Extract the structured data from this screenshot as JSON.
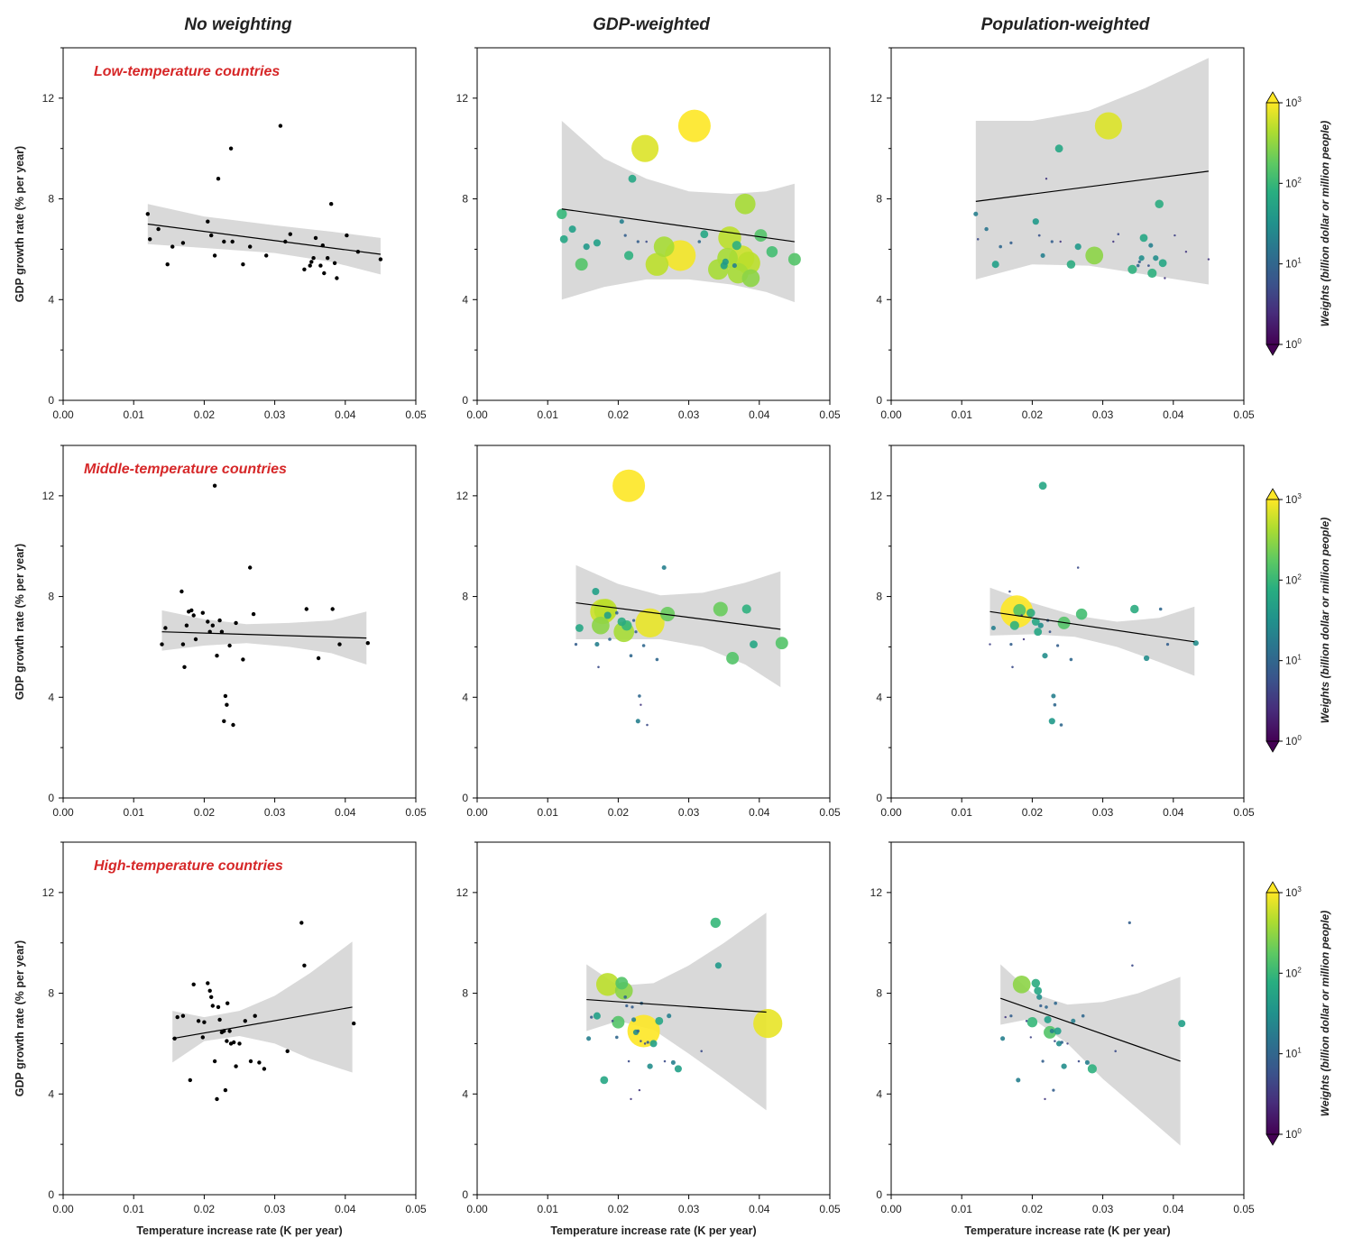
{
  "column_titles": [
    "No weighting",
    "GDP-weighted",
    "Population-weighted"
  ],
  "row_labels": [
    "Low-temperature countries",
    "Middle-temperature countries",
    "High-temperature countries"
  ],
  "colors": {
    "row_label": "#d62728",
    "band": "#d9d9d9",
    "points_unweighted": "#000000"
  },
  "colorbar": {
    "label": "Weights (billion dollar or million people)",
    "ticks": [
      "10",
      "10",
      "10",
      "10"
    ],
    "tick_exponents": [
      "0",
      "1",
      "2",
      "3"
    ],
    "colormap": "viridis"
  },
  "chart_data": {
    "type": "scatter",
    "layout": "3x3 grid",
    "xlabel": "Temperature increase rate (K per year)",
    "ylabel": "GDP growth rate (% per year)",
    "xlim": [
      0.0,
      0.05
    ],
    "ylim": [
      0,
      14
    ],
    "x_ticks": [
      "0.00",
      "0.01",
      "0.02",
      "0.03",
      "0.04",
      "0.05"
    ],
    "y_ticks": [
      "0",
      "4",
      "8",
      "12"
    ],
    "panels": [
      {
        "group": "Low-temperature countries",
        "points": [
          {
            "x": 0.012,
            "y": 7.4,
            "gdp": 100,
            "pop": 20
          },
          {
            "x": 0.0123,
            "y": 6.4,
            "gdp": 60,
            "pop": 5
          },
          {
            "x": 0.0135,
            "y": 6.8,
            "gdp": 50,
            "pop": 15
          },
          {
            "x": 0.0148,
            "y": 5.4,
            "gdp": 150,
            "pop": 50
          },
          {
            "x": 0.0155,
            "y": 6.1,
            "gdp": 40,
            "pop": 10
          },
          {
            "x": 0.017,
            "y": 6.25,
            "gdp": 50,
            "pop": 8
          },
          {
            "x": 0.0205,
            "y": 7.1,
            "gdp": 20,
            "pop": 40
          },
          {
            "x": 0.021,
            "y": 6.55,
            "gdp": 8,
            "pop": 6
          },
          {
            "x": 0.0215,
            "y": 5.75,
            "gdp": 80,
            "pop": 20
          },
          {
            "x": 0.022,
            "y": 8.8,
            "gdp": 60,
            "pop": 3
          },
          {
            "x": 0.0228,
            "y": 6.3,
            "gdp": 8,
            "pop": 8
          },
          {
            "x": 0.0238,
            "y": 10.0,
            "gdp": 700,
            "pop": 60
          },
          {
            "x": 0.024,
            "y": 6.3,
            "gdp": 5,
            "pop": 3
          },
          {
            "x": 0.0255,
            "y": 5.4,
            "gdp": 500,
            "pop": 70
          },
          {
            "x": 0.0265,
            "y": 6.1,
            "gdp": 400,
            "pop": 40
          },
          {
            "x": 0.0288,
            "y": 5.75,
            "gdp": 900,
            "pop": 300
          },
          {
            "x": 0.0308,
            "y": 10.9,
            "gdp": 1000,
            "pop": 700
          },
          {
            "x": 0.0315,
            "y": 6.3,
            "gdp": 10,
            "pop": 3
          },
          {
            "x": 0.0322,
            "y": 6.6,
            "gdp": 60,
            "pop": 5
          },
          {
            "x": 0.0342,
            "y": 5.2,
            "gdp": 400,
            "pop": 80
          },
          {
            "x": 0.035,
            "y": 5.35,
            "gdp": 50,
            "pop": 10
          },
          {
            "x": 0.0352,
            "y": 5.5,
            "gdp": 40,
            "pop": 8
          },
          {
            "x": 0.0355,
            "y": 5.65,
            "gdp": 400,
            "pop": 30
          },
          {
            "x": 0.0358,
            "y": 6.45,
            "gdp": 500,
            "pop": 60
          },
          {
            "x": 0.0365,
            "y": 5.35,
            "gdp": 20,
            "pop": 6
          },
          {
            "x": 0.0368,
            "y": 6.15,
            "gdp": 80,
            "pop": 20
          },
          {
            "x": 0.037,
            "y": 5.05,
            "gdp": 400,
            "pop": 80
          },
          {
            "x": 0.0375,
            "y": 5.65,
            "gdp": 600,
            "pop": 30
          },
          {
            "x": 0.038,
            "y": 7.8,
            "gdp": 400,
            "pop": 70
          },
          {
            "x": 0.0385,
            "y": 5.45,
            "gdp": 500,
            "pop": 60
          },
          {
            "x": 0.0388,
            "y": 4.85,
            "gdp": 300,
            "pop": 3
          },
          {
            "x": 0.0402,
            "y": 6.55,
            "gdp": 150,
            "pop": 4
          },
          {
            "x": 0.0418,
            "y": 5.9,
            "gdp": 120,
            "pop": 3
          },
          {
            "x": 0.045,
            "y": 5.6,
            "gdp": 150,
            "pop": 3
          }
        ],
        "regression": {
          "x": [
            0.012,
            0.045
          ],
          "unweighted": [
            7.0,
            5.8
          ],
          "gdp": [
            7.6,
            6.3
          ],
          "pop": [
            7.9,
            9.1
          ]
        },
        "band": {
          "unweighted": {
            "x": [
              0.012,
              0.02,
              0.03,
              0.038,
              0.045
            ],
            "lower": [
              6.2,
              6.05,
              5.85,
              5.5,
              5.0
            ],
            "upper": [
              7.8,
              7.3,
              6.95,
              6.7,
              6.45
            ]
          },
          "gdp": {
            "x": [
              0.012,
              0.018,
              0.024,
              0.03,
              0.036,
              0.041,
              0.045
            ],
            "lower": [
              4.0,
              4.5,
              4.8,
              4.8,
              4.6,
              4.3,
              3.9
            ],
            "upper": [
              11.1,
              9.6,
              8.8,
              8.3,
              8.2,
              8.3,
              8.6
            ]
          },
          "pop": {
            "x": [
              0.012,
              0.02,
              0.028,
              0.036,
              0.045
            ],
            "lower": [
              4.8,
              5.4,
              5.35,
              5.0,
              4.6
            ],
            "upper": [
              11.1,
              11.1,
              11.5,
              12.4,
              13.6
            ]
          }
        }
      },
      {
        "group": "Middle-temperature countries",
        "points": [
          {
            "x": 0.014,
            "y": 6.1,
            "gdp": 8,
            "pop": 4
          },
          {
            "x": 0.0145,
            "y": 6.75,
            "gdp": 60,
            "pop": 20
          },
          {
            "x": 0.0168,
            "y": 8.2,
            "gdp": 50,
            "pop": 5
          },
          {
            "x": 0.017,
            "y": 6.1,
            "gdp": 20,
            "pop": 8
          },
          {
            "x": 0.0172,
            "y": 5.2,
            "gdp": 5,
            "pop": 5
          },
          {
            "x": 0.0175,
            "y": 6.85,
            "gdp": 300,
            "pop": 80
          },
          {
            "x": 0.0178,
            "y": 7.4,
            "gdp": 600,
            "pop": 1000
          },
          {
            "x": 0.0182,
            "y": 7.45,
            "gdp": 500,
            "pop": 150
          },
          {
            "x": 0.0185,
            "y": 7.25,
            "gdp": 50,
            "pop": 3
          },
          {
            "x": 0.0188,
            "y": 6.3,
            "gdp": 10,
            "pop": 3
          },
          {
            "x": 0.0198,
            "y": 7.35,
            "gdp": 10,
            "pop": 70
          },
          {
            "x": 0.0205,
            "y": 7.0,
            "gdp": 70,
            "pop": 60
          },
          {
            "x": 0.0208,
            "y": 6.6,
            "gdp": 400,
            "pop": 60
          },
          {
            "x": 0.0212,
            "y": 6.85,
            "gdp": 100,
            "pop": 30
          },
          {
            "x": 0.0215,
            "y": 12.4,
            "gdp": 1000,
            "pop": 60
          },
          {
            "x": 0.0218,
            "y": 5.65,
            "gdp": 10,
            "pop": 30
          },
          {
            "x": 0.0222,
            "y": 7.05,
            "gdp": 8,
            "pop": 8
          },
          {
            "x": 0.0225,
            "y": 6.6,
            "gdp": 8,
            "pop": 6
          },
          {
            "x": 0.0228,
            "y": 3.05,
            "gdp": 20,
            "pop": 40
          },
          {
            "x": 0.023,
            "y": 4.05,
            "gdp": 10,
            "pop": 20
          },
          {
            "x": 0.0232,
            "y": 3.7,
            "gdp": 3,
            "pop": 10
          },
          {
            "x": 0.0236,
            "y": 6.05,
            "gdp": 10,
            "pop": 8
          },
          {
            "x": 0.0241,
            "y": 2.9,
            "gdp": 5,
            "pop": 10
          },
          {
            "x": 0.0245,
            "y": 6.95,
            "gdp": 800,
            "pop": 150
          },
          {
            "x": 0.0255,
            "y": 5.5,
            "gdp": 10,
            "pop": 10
          },
          {
            "x": 0.0265,
            "y": 9.15,
            "gdp": 20,
            "pop": 5
          },
          {
            "x": 0.027,
            "y": 7.3,
            "gdp": 200,
            "pop": 120
          },
          {
            "x": 0.0345,
            "y": 7.5,
            "gdp": 200,
            "pop": 70
          },
          {
            "x": 0.0362,
            "y": 5.55,
            "gdp": 150,
            "pop": 30
          },
          {
            "x": 0.0382,
            "y": 7.5,
            "gdp": 80,
            "pop": 10
          },
          {
            "x": 0.0392,
            "y": 6.1,
            "gdp": 60,
            "pop": 8
          },
          {
            "x": 0.0432,
            "y": 6.15,
            "gdp": 150,
            "pop": 30
          }
        ],
        "regression": {
          "x": [
            0.014,
            0.043
          ],
          "unweighted": [
            6.6,
            6.35
          ],
          "gdp": [
            7.75,
            6.7
          ],
          "pop": [
            7.4,
            6.2
          ]
        },
        "band": {
          "unweighted": {
            "x": [
              0.014,
              0.02,
              0.026,
              0.032,
              0.038,
              0.043
            ],
            "lower": [
              5.85,
              6.05,
              6.15,
              6.0,
              5.75,
              5.3
            ],
            "upper": [
              7.45,
              7.1,
              6.9,
              6.95,
              7.05,
              7.4
            ]
          },
          "gdp": {
            "x": [
              0.014,
              0.02,
              0.026,
              0.032,
              0.038,
              0.043
            ],
            "lower": [
              6.3,
              6.3,
              6.3,
              6.0,
              5.3,
              4.4
            ],
            "upper": [
              9.25,
              8.5,
              8.05,
              8.15,
              8.55,
              9.0
            ]
          },
          "pop": {
            "x": [
              0.014,
              0.02,
              0.026,
              0.032,
              0.038,
              0.043
            ],
            "lower": [
              6.45,
              6.5,
              6.4,
              6.0,
              5.4,
              4.85
            ],
            "upper": [
              8.35,
              7.75,
              7.25,
              7.0,
              7.15,
              7.6
            ]
          }
        }
      },
      {
        "group": "High-temperature countries",
        "points": [
          {
            "x": 0.0158,
            "y": 6.2,
            "gdp": 20,
            "pop": 20
          },
          {
            "x": 0.0162,
            "y": 7.05,
            "gdp": 8,
            "pop": 3
          },
          {
            "x": 0.017,
            "y": 7.1,
            "gdp": 50,
            "pop": 8
          },
          {
            "x": 0.018,
            "y": 4.55,
            "gdp": 60,
            "pop": 20
          },
          {
            "x": 0.0185,
            "y": 8.35,
            "gdp": 500,
            "pop": 300
          },
          {
            "x": 0.0192,
            "y": 6.9,
            "gdp": 5,
            "pop": 5
          },
          {
            "x": 0.0198,
            "y": 6.25,
            "gdp": 10,
            "pop": 4
          },
          {
            "x": 0.02,
            "y": 6.85,
            "gdp": 150,
            "pop": 100
          },
          {
            "x": 0.0205,
            "y": 8.4,
            "gdp": 150,
            "pop": 70
          },
          {
            "x": 0.0208,
            "y": 8.1,
            "gdp": 300,
            "pop": 60
          },
          {
            "x": 0.021,
            "y": 7.85,
            "gdp": 10,
            "pop": 30
          },
          {
            "x": 0.0212,
            "y": 7.5,
            "gdp": 8,
            "pop": 8
          },
          {
            "x": 0.0215,
            "y": 5.3,
            "gdp": 5,
            "pop": 8
          },
          {
            "x": 0.0218,
            "y": 3.8,
            "gdp": 3,
            "pop": 3
          },
          {
            "x": 0.022,
            "y": 7.45,
            "gdp": 8,
            "pop": 10
          },
          {
            "x": 0.0222,
            "y": 6.95,
            "gdp": 20,
            "pop": 50
          },
          {
            "x": 0.0225,
            "y": 6.45,
            "gdp": 30,
            "pop": 150
          },
          {
            "x": 0.0228,
            "y": 6.5,
            "gdp": 10,
            "pop": 20
          },
          {
            "x": 0.023,
            "y": 4.15,
            "gdp": 3,
            "pop": 8
          },
          {
            "x": 0.0232,
            "y": 6.1,
            "gdp": 5,
            "pop": 5
          },
          {
            "x": 0.0233,
            "y": 7.6,
            "gdp": 10,
            "pop": 10
          },
          {
            "x": 0.0236,
            "y": 6.5,
            "gdp": 1000,
            "pop": 50
          },
          {
            "x": 0.0238,
            "y": 6.0,
            "gdp": 5,
            "pop": 30
          },
          {
            "x": 0.0242,
            "y": 6.05,
            "gdp": 8,
            "pop": 10
          },
          {
            "x": 0.0245,
            "y": 5.1,
            "gdp": 30,
            "pop": 30
          },
          {
            "x": 0.025,
            "y": 6.0,
            "gdp": 50,
            "pop": 4
          },
          {
            "x": 0.0258,
            "y": 6.9,
            "gdp": 60,
            "pop": 20
          },
          {
            "x": 0.0266,
            "y": 5.3,
            "gdp": 5,
            "pop": 5
          },
          {
            "x": 0.0272,
            "y": 7.1,
            "gdp": 20,
            "pop": 10
          },
          {
            "x": 0.0278,
            "y": 5.25,
            "gdp": 20,
            "pop": 20
          },
          {
            "x": 0.0285,
            "y": 5.0,
            "gdp": 50,
            "pop": 80
          },
          {
            "x": 0.0318,
            "y": 5.7,
            "gdp": 5,
            "pop": 5
          },
          {
            "x": 0.0338,
            "y": 10.8,
            "gdp": 100,
            "pop": 8
          },
          {
            "x": 0.0342,
            "y": 9.1,
            "gdp": 40,
            "pop": 5
          },
          {
            "x": 0.0412,
            "y": 6.8,
            "gdp": 800,
            "pop": 50
          }
        ],
        "regression": {
          "x": [
            0.0155,
            0.041
          ],
          "unweighted": [
            6.2,
            7.45
          ],
          "gdp": [
            7.75,
            7.25
          ],
          "pop": [
            7.8,
            5.3
          ]
        },
        "band": {
          "unweighted": {
            "x": [
              0.0155,
              0.02,
              0.025,
              0.03,
              0.035,
              0.041
            ],
            "lower": [
              5.25,
              6.1,
              6.3,
              6.0,
              5.4,
              4.85
            ],
            "upper": [
              7.3,
              7.05,
              7.3,
              7.9,
              8.8,
              10.05
            ]
          },
          "gdp": {
            "x": [
              0.0155,
              0.02,
              0.025,
              0.03,
              0.035,
              0.041
            ],
            "lower": [
              6.5,
              6.9,
              6.55,
              5.6,
              4.6,
              3.35
            ],
            "upper": [
              9.15,
              8.3,
              8.4,
              9.1,
              10.0,
              11.2
            ]
          },
          "pop": {
            "x": [
              0.0155,
              0.02,
              0.025,
              0.03,
              0.035,
              0.041
            ],
            "lower": [
              6.75,
              7.0,
              6.0,
              4.6,
              3.4,
              1.95
            ],
            "upper": [
              9.15,
              8.0,
              7.55,
              7.65,
              8.0,
              8.65
            ]
          }
        }
      }
    ]
  }
}
